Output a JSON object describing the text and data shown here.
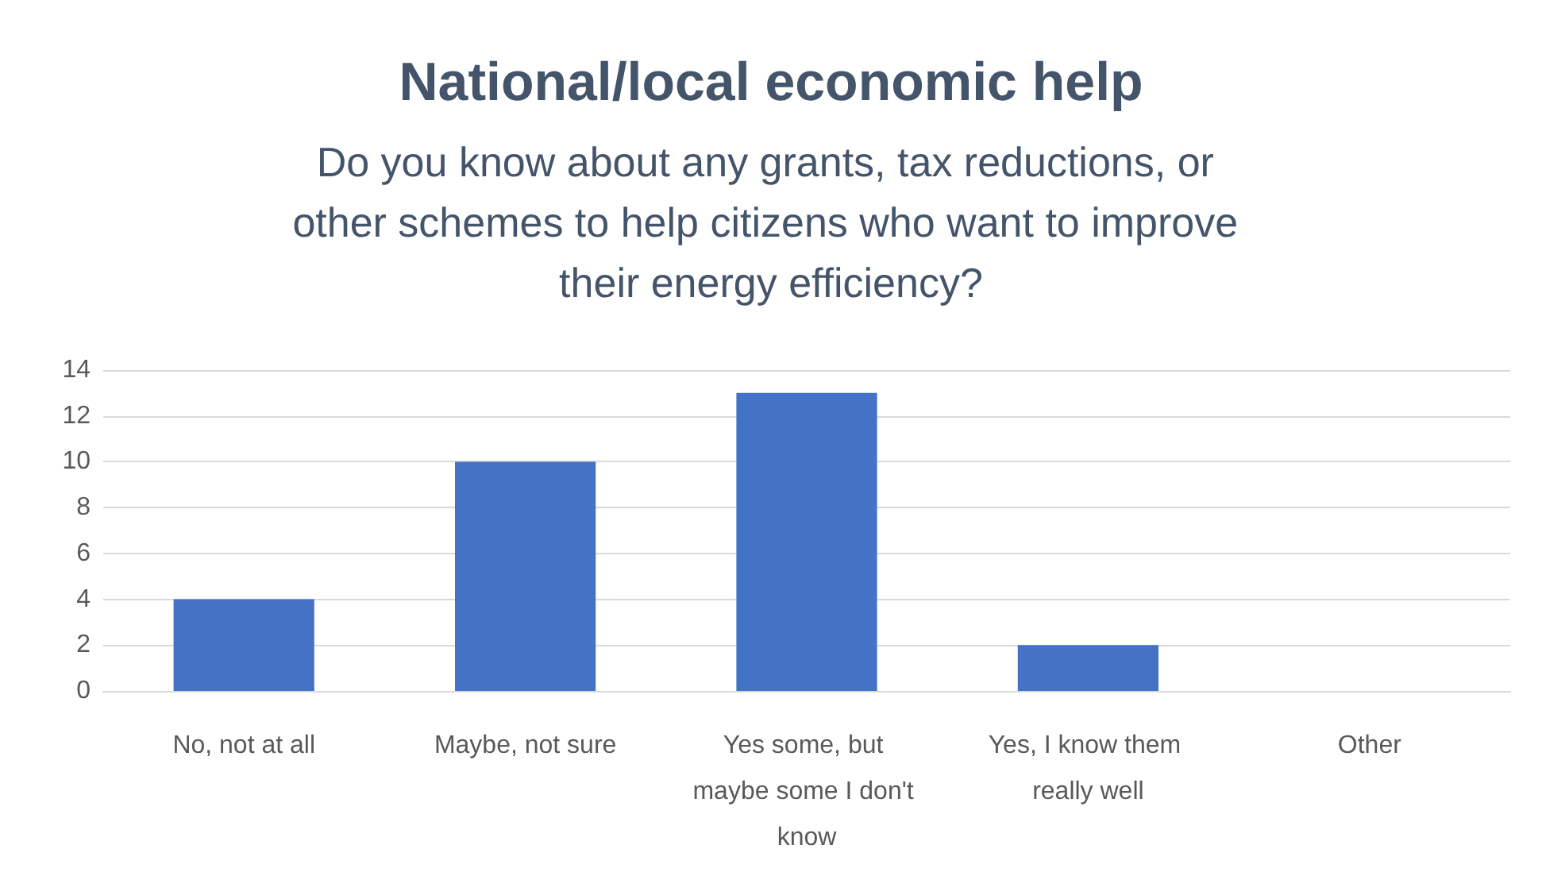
{
  "chart_data": {
    "type": "bar",
    "title": "National/local economic help",
    "subtitle": "Do you know about any grants, tax reductions, or other schemes to help citizens who want to improve their energy efficiency?",
    "categories": [
      "No, not at all",
      "Maybe, not sure",
      "Yes some, but maybe some I don't know",
      "Yes, I know them really well",
      "Other"
    ],
    "values": [
      4,
      10,
      13,
      2,
      0
    ],
    "color": "#4472c4",
    "ylim": [
      0,
      14
    ],
    "yticks": [
      0,
      2,
      4,
      6,
      8,
      10,
      12,
      14
    ],
    "grid": "y"
  }
}
